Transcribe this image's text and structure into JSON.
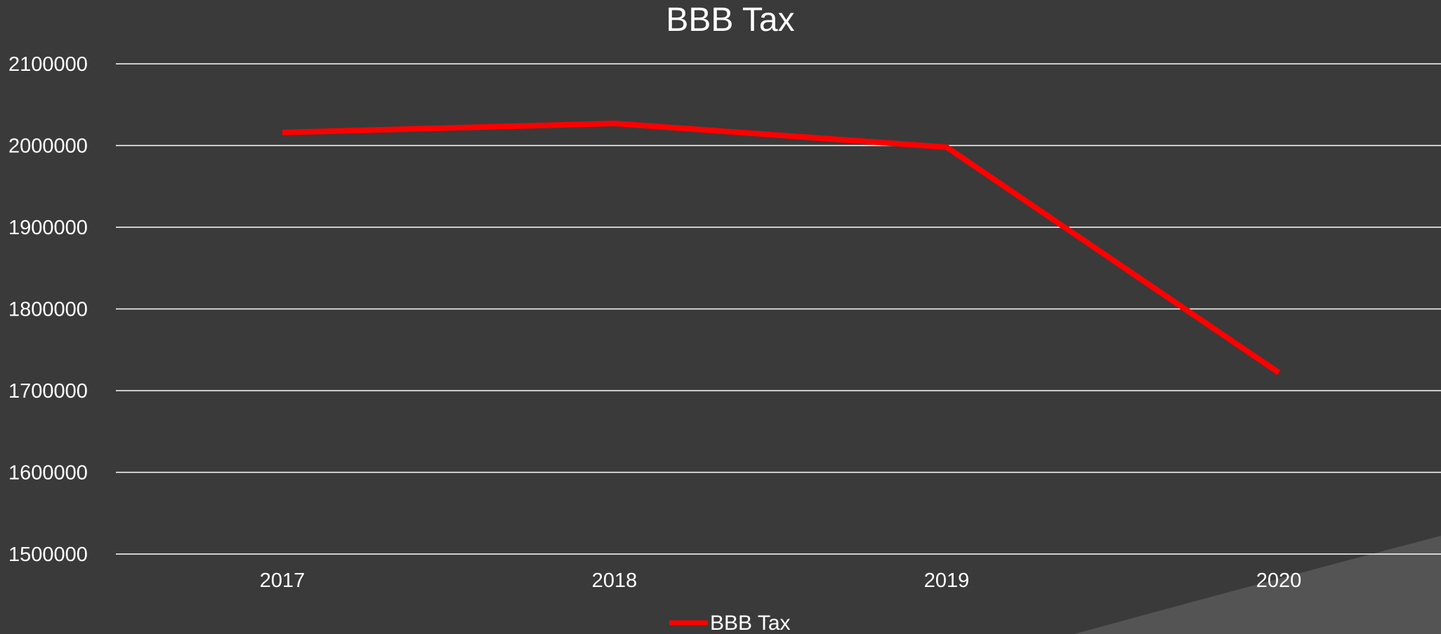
{
  "colors": {
    "background": "#3a3a3a",
    "corner_shape": "#545454",
    "gridline": "#ffffff",
    "text": "#ffffff",
    "series": "#ff0000"
  },
  "chart_data": {
    "type": "line",
    "title": "BBB Tax",
    "xlabel": "",
    "ylabel": "",
    "categories": [
      "2017",
      "2018",
      "2019",
      "2020"
    ],
    "series": [
      {
        "name": "BBB Tax",
        "color": "#ff0000",
        "values": [
          2016000,
          2027000,
          1998000,
          1722000
        ]
      }
    ],
    "ylim": [
      1500000,
      2100000
    ],
    "yticks": [
      "1500000",
      "1600000",
      "1700000",
      "1800000",
      "1900000",
      "2000000",
      "2100000"
    ],
    "grid": true,
    "legend_position": "bottom"
  }
}
